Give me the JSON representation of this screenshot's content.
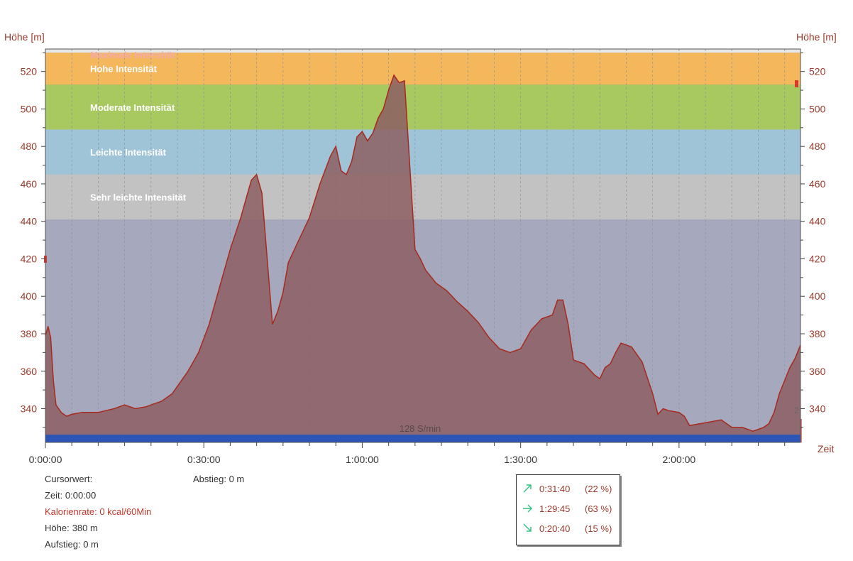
{
  "chart_data": {
    "type": "area",
    "ylabel_left": "Höhe [m]",
    "ylabel_right": "Höhe [m]",
    "xlabel": "Zeit",
    "ylim": [
      322,
      532
    ],
    "xlim_minutes": [
      0,
      143
    ],
    "y_ticks": [
      340,
      360,
      380,
      400,
      420,
      440,
      460,
      480,
      500,
      520
    ],
    "x_ticks": [
      {
        "minutes": 0,
        "label": "0:00:00"
      },
      {
        "minutes": 30,
        "label": "0:30:00"
      },
      {
        "minutes": 60,
        "label": "1:00:00"
      },
      {
        "minutes": 90,
        "label": "1:30:00"
      },
      {
        "minutes": 120,
        "label": "2:00:00"
      }
    ],
    "zones": [
      {
        "label": "Maximale Intensität",
        "from": 530,
        "to": 532,
        "color": "#e6e6e6",
        "text_color": "#f4aaaa"
      },
      {
        "label": "Hohe Intensität",
        "from": 513,
        "to": 530,
        "color": "#f4b75c",
        "text_color": "#ffffff"
      },
      {
        "label": "Moderate Intensität",
        "from": 489,
        "to": 513,
        "color": "#a8c860",
        "text_color": "#ffffff"
      },
      {
        "label": "Leichte Intensität",
        "from": 465,
        "to": 489,
        "color": "#9fc4d8",
        "text_color": "#ffffff"
      },
      {
        "label": "Sehr leichte Intensität",
        "from": 441,
        "to": 465,
        "color": "#c2c2c2",
        "text_color": "#ffffff"
      }
    ],
    "below_zone_color": "#a6a9be",
    "area_fill": "#8c5f63",
    "line_color": "#a62a1e",
    "cadence_label": "128 S/min",
    "cadence_bar_color": "#2d55b6",
    "series": [
      {
        "x_minutes": [
          0,
          0.5,
          1,
          1.5,
          2,
          3,
          4,
          5,
          7,
          10,
          13,
          15,
          17,
          19,
          20,
          21,
          22,
          23,
          24,
          25,
          27,
          29,
          31,
          33,
          35,
          37,
          38,
          39,
          40,
          41,
          42,
          43,
          44,
          45,
          46,
          48,
          50,
          52,
          54,
          55,
          56,
          57,
          58,
          59,
          60,
          61,
          62,
          63,
          64,
          65,
          66,
          67,
          68,
          69,
          70,
          71,
          72,
          74,
          76,
          78,
          80,
          82,
          84,
          86,
          88,
          90,
          92,
          94,
          96,
          97,
          98,
          99,
          100,
          102,
          104,
          105,
          106,
          107,
          108,
          109,
          110,
          111,
          113,
          115,
          116,
          117,
          118,
          120,
          121,
          122,
          124,
          126,
          128,
          130,
          132,
          134,
          136,
          137,
          138,
          139,
          140,
          141,
          142,
          143
        ],
        "y": [
          379,
          384,
          378,
          355,
          342,
          338,
          336,
          337,
          338,
          338,
          340,
          342,
          340,
          341,
          342,
          343,
          344,
          346,
          348,
          352,
          360,
          370,
          385,
          405,
          425,
          442,
          452,
          462,
          465,
          455,
          420,
          385,
          392,
          402,
          418,
          430,
          442,
          460,
          475,
          480,
          467,
          465,
          472,
          485,
          488,
          483,
          487,
          495,
          500,
          510,
          518,
          514,
          515,
          470,
          425,
          420,
          414,
          407,
          403,
          397,
          392,
          386,
          378,
          372,
          370,
          372,
          382,
          388,
          390,
          398,
          398,
          385,
          366,
          364,
          358,
          356,
          362,
          364,
          370,
          375,
          374,
          373,
          365,
          348,
          337,
          340,
          339,
          338,
          336,
          331,
          332,
          333,
          334,
          330,
          330,
          328,
          330,
          332,
          338,
          348,
          355,
          362,
          367,
          374
        ]
      }
    ]
  },
  "info": {
    "cursor_label": "Cursorwert:",
    "zeit": "Zeit: 0:00:00",
    "kalorien": "Kalorienrate: 0 kcal/60Min",
    "hoehe_label": "Höhe:",
    "hoehe_value": "380 m",
    "aufstieg": "Aufstieg: 0 m",
    "abstieg": "Abstieg: 0 m"
  },
  "summary": [
    {
      "icon": "arrow-up-right-icon",
      "time": "0:31:40",
      "percent": "(22 %)",
      "color": "#2ec27e"
    },
    {
      "icon": "arrow-right-icon",
      "time": "1:29:45",
      "percent": "(63 %)",
      "color": "#2ec27e"
    },
    {
      "icon": "arrow-down-right-icon",
      "time": "0:20:40",
      "percent": "(15 %)",
      "color": "#2ec27e"
    }
  ],
  "edge_marker": "2"
}
